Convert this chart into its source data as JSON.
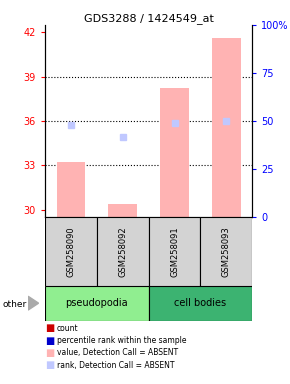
{
  "title": "GDS3288 / 1424549_at",
  "samples": [
    "GSM258090",
    "GSM258092",
    "GSM258091",
    "GSM258093"
  ],
  "ylim_left": [
    29.5,
    42.5
  ],
  "ylim_right": [
    0,
    100
  ],
  "yticks_left": [
    30,
    33,
    36,
    39,
    42
  ],
  "yticks_right": [
    0,
    25,
    50,
    75,
    100
  ],
  "bar_values": [
    33.2,
    30.35,
    38.2,
    41.6
  ],
  "rank_squares": [
    35.7,
    34.9,
    35.85,
    36.0
  ],
  "bar_color": "#ffb3b3",
  "rank_color": "#c0c8ff",
  "dotted_lines": [
    33,
    36,
    39
  ],
  "bar_bottom": 29.5,
  "bar_width": 0.55,
  "legend_items": [
    {
      "color": "#cc0000",
      "label": "count"
    },
    {
      "color": "#0000cc",
      "label": "percentile rank within the sample"
    },
    {
      "color": "#ffb3b3",
      "label": "value, Detection Call = ABSENT"
    },
    {
      "color": "#c0c8ff",
      "label": "rank, Detection Call = ABSENT"
    }
  ]
}
